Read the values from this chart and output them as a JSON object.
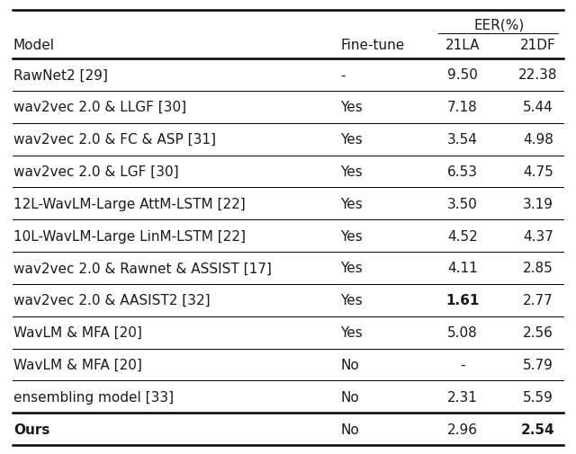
{
  "rows": [
    {
      "model": "RawNet2 [29]",
      "finetune": "-",
      "la": "9.50",
      "df": "22.38",
      "bold_la": false,
      "bold_df": false,
      "bold_model": false
    },
    {
      "model": "wav2vec 2.0 & LLGF [30]",
      "finetune": "Yes",
      "la": "7.18",
      "df": "5.44",
      "bold_la": false,
      "bold_df": false,
      "bold_model": false
    },
    {
      "model": "wav2vec 2.0 & FC & ASP [31]",
      "finetune": "Yes",
      "la": "3.54",
      "df": "4.98",
      "bold_la": false,
      "bold_df": false,
      "bold_model": false
    },
    {
      "model": "wav2vec 2.0 & LGF [30]",
      "finetune": "Yes",
      "la": "6.53",
      "df": "4.75",
      "bold_la": false,
      "bold_df": false,
      "bold_model": false
    },
    {
      "model": "12L-WavLM-Large AttM-LSTM [22]",
      "finetune": "Yes",
      "la": "3.50",
      "df": "3.19",
      "bold_la": false,
      "bold_df": false,
      "bold_model": false
    },
    {
      "model": "10L-WavLM-Large LinM-LSTM [22]",
      "finetune": "Yes",
      "la": "4.52",
      "df": "4.37",
      "bold_la": false,
      "bold_df": false,
      "bold_model": false
    },
    {
      "model": "wav2vec 2.0 & Rawnet & ASSIST [17]",
      "finetune": "Yes",
      "la": "4.11",
      "df": "2.85",
      "bold_la": false,
      "bold_df": false,
      "bold_model": false
    },
    {
      "model": "wav2vec 2.0 & AASIST2 [32]",
      "finetune": "Yes",
      "la": "1.61",
      "df": "2.77",
      "bold_la": true,
      "bold_df": false,
      "bold_model": false
    },
    {
      "model": "WavLM & MFA [20]",
      "finetune": "Yes",
      "la": "5.08",
      "df": "2.56",
      "bold_la": false,
      "bold_df": false,
      "bold_model": false
    },
    {
      "model": "WavLM & MFA [20]",
      "finetune": "No",
      "la": "-",
      "df": "5.79",
      "bold_la": false,
      "bold_df": false,
      "bold_model": false
    },
    {
      "model": "ensembling model [33]",
      "finetune": "No",
      "la": "2.31",
      "df": "5.59",
      "bold_la": false,
      "bold_df": false,
      "bold_model": false
    },
    {
      "model": "Ours",
      "finetune": "No",
      "la": "2.96",
      "df": "2.54",
      "bold_la": false,
      "bold_df": true,
      "bold_model": true
    }
  ],
  "bg_color": "#ffffff",
  "text_color": "#1a1a1a",
  "font_size": 11.0,
  "figsize": [
    6.4,
    5.06
  ],
  "dpi": 100
}
